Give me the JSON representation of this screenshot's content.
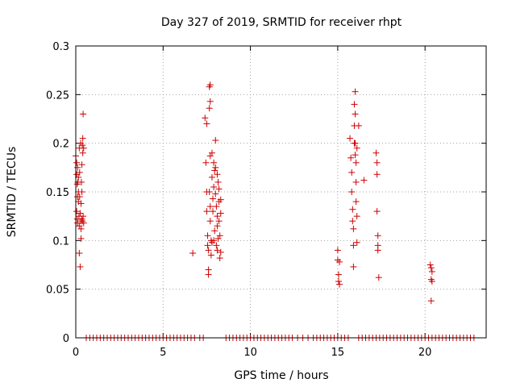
{
  "chart_data": {
    "type": "scatter",
    "title": "Day 327 of 2019, SRMTID for receiver rhpt",
    "xlabel": "GPS time / hours",
    "ylabel": "SRMTID / TECUs",
    "xlim": [
      0,
      23.5
    ],
    "ylim": [
      0,
      0.3
    ],
    "xticks": [
      0,
      5,
      10,
      15,
      20
    ],
    "yticks": [
      0,
      0.05,
      0.1,
      0.15,
      0.2,
      0.25,
      0.3
    ],
    "xtick_labels": [
      "0",
      "5",
      "10",
      "15",
      "20"
    ],
    "ytick_labels": [
      "0",
      "0.05",
      "0.1",
      "0.15",
      "0.2",
      "0.25",
      "0.3"
    ],
    "grid": true,
    "marker": "+",
    "marker_color": "#cc0000",
    "series": [
      {
        "points": [
          [
            0.0,
            0.187
          ],
          [
            0.05,
            0.18
          ],
          [
            0.05,
            0.168
          ],
          [
            0.08,
            0.158
          ],
          [
            0.1,
            0.145
          ],
          [
            0.05,
            0.13
          ],
          [
            0.08,
            0.122
          ],
          [
            0.1,
            0.118
          ],
          [
            0.12,
            0.16
          ],
          [
            0.15,
            0.15
          ],
          [
            0.15,
            0.14
          ],
          [
            0.18,
            0.125
          ],
          [
            0.2,
            0.115
          ],
          [
            0.2,
            0.195
          ],
          [
            0.22,
            0.17
          ],
          [
            0.2,
            0.087
          ],
          [
            0.25,
            0.073
          ],
          [
            0.25,
            0.128
          ],
          [
            0.28,
            0.12
          ],
          [
            0.3,
            0.112
          ],
          [
            0.3,
            0.138
          ],
          [
            0.32,
            0.16
          ],
          [
            0.35,
            0.178
          ],
          [
            0.35,
            0.15
          ],
          [
            0.38,
            0.198
          ],
          [
            0.4,
            0.19
          ],
          [
            0.4,
            0.205
          ],
          [
            0.42,
            0.23
          ],
          [
            0.45,
            0.195
          ],
          [
            0.42,
            0.125
          ],
          [
            0.45,
            0.118
          ],
          [
            0.38,
            0.12
          ],
          [
            0.1,
            0.175
          ],
          [
            0.15,
            0.165
          ],
          [
            0.3,
            0.102
          ],
          [
            0.22,
            0.145
          ],
          [
            0.35,
            0.122
          ],
          [
            0.28,
            0.2
          ],
          [
            6.7,
            0.087
          ],
          [
            7.4,
            0.226
          ],
          [
            7.45,
            0.18
          ],
          [
            7.5,
            0.22
          ],
          [
            7.5,
            0.13
          ],
          [
            7.55,
            0.105
          ],
          [
            7.55,
            0.095
          ],
          [
            7.6,
            0.07
          ],
          [
            7.6,
            0.065
          ],
          [
            7.65,
            0.258
          ],
          [
            7.65,
            0.236
          ],
          [
            7.7,
            0.26
          ],
          [
            7.7,
            0.243
          ],
          [
            7.7,
            0.187
          ],
          [
            7.65,
            0.15
          ],
          [
            7.7,
            0.12
          ],
          [
            7.75,
            0.1
          ],
          [
            7.75,
            0.085
          ],
          [
            7.8,
            0.19
          ],
          [
            7.8,
            0.165
          ],
          [
            7.85,
            0.143
          ],
          [
            7.85,
            0.13
          ],
          [
            7.9,
            0.18
          ],
          [
            7.9,
            0.155
          ],
          [
            7.95,
            0.172
          ],
          [
            7.95,
            0.11
          ],
          [
            8.0,
            0.203
          ],
          [
            8.0,
            0.148
          ],
          [
            8.05,
            0.135
          ],
          [
            8.05,
            0.095
          ],
          [
            8.1,
            0.168
          ],
          [
            8.1,
            0.125
          ],
          [
            8.1,
            0.115
          ],
          [
            8.15,
            0.16
          ],
          [
            8.15,
            0.102
          ],
          [
            8.2,
            0.153
          ],
          [
            8.2,
            0.12
          ],
          [
            8.25,
            0.105
          ],
          [
            8.25,
            0.082
          ],
          [
            8.3,
            0.142
          ],
          [
            8.3,
            0.128
          ],
          [
            8.3,
            0.088
          ],
          [
            7.5,
            0.15
          ],
          [
            7.6,
            0.09
          ],
          [
            7.8,
            0.098
          ],
          [
            8.0,
            0.175
          ],
          [
            8.2,
            0.14
          ],
          [
            7.9,
            0.1
          ],
          [
            7.7,
            0.135
          ],
          [
            8.1,
            0.09
          ],
          [
            15.0,
            0.09
          ],
          [
            15.0,
            0.08
          ],
          [
            15.05,
            0.065
          ],
          [
            15.05,
            0.058
          ],
          [
            15.1,
            0.055
          ],
          [
            15.1,
            0.078
          ],
          [
            15.7,
            0.205
          ],
          [
            15.75,
            0.185
          ],
          [
            15.8,
            0.17
          ],
          [
            15.8,
            0.15
          ],
          [
            15.85,
            0.132
          ],
          [
            15.85,
            0.12
          ],
          [
            15.9,
            0.112
          ],
          [
            15.9,
            0.095
          ],
          [
            15.9,
            0.073
          ],
          [
            15.95,
            0.24
          ],
          [
            15.95,
            0.218
          ],
          [
            16.0,
            0.253
          ],
          [
            16.0,
            0.23
          ],
          [
            16.0,
            0.2
          ],
          [
            16.05,
            0.18
          ],
          [
            16.05,
            0.16
          ],
          [
            16.05,
            0.14
          ],
          [
            16.1,
            0.195
          ],
          [
            16.1,
            0.125
          ],
          [
            16.1,
            0.098
          ],
          [
            16.2,
            0.218
          ],
          [
            16.5,
            0.162
          ],
          [
            15.95,
            0.2
          ],
          [
            16.0,
            0.188
          ],
          [
            17.2,
            0.19
          ],
          [
            17.25,
            0.18
          ],
          [
            17.25,
            0.168
          ],
          [
            17.25,
            0.13
          ],
          [
            17.3,
            0.105
          ],
          [
            17.3,
            0.095
          ],
          [
            17.3,
            0.09
          ],
          [
            17.35,
            0.062
          ],
          [
            20.3,
            0.075
          ],
          [
            20.35,
            0.072
          ],
          [
            20.35,
            0.06
          ],
          [
            20.4,
            0.068
          ],
          [
            20.4,
            0.058
          ],
          [
            20.35,
            0.038
          ]
        ]
      },
      {
        "points": [
          [
            0.6,
            0
          ],
          [
            0.8,
            0
          ],
          [
            1.0,
            0
          ],
          [
            1.2,
            0
          ],
          [
            1.4,
            0
          ],
          [
            1.6,
            0
          ],
          [
            1.8,
            0
          ],
          [
            2.0,
            0
          ],
          [
            2.2,
            0
          ],
          [
            2.4,
            0
          ],
          [
            2.6,
            0
          ],
          [
            2.8,
            0
          ],
          [
            3.0,
            0
          ],
          [
            3.2,
            0
          ],
          [
            3.4,
            0
          ],
          [
            3.6,
            0
          ],
          [
            3.8,
            0
          ],
          [
            4.0,
            0
          ],
          [
            4.2,
            0
          ],
          [
            4.4,
            0
          ],
          [
            4.6,
            0
          ],
          [
            4.8,
            0
          ],
          [
            5.0,
            0
          ],
          [
            5.2,
            0
          ],
          [
            5.4,
            0
          ],
          [
            5.6,
            0
          ],
          [
            5.8,
            0
          ],
          [
            6.0,
            0
          ],
          [
            6.2,
            0
          ],
          [
            6.4,
            0
          ],
          [
            6.6,
            0
          ],
          [
            6.8,
            0
          ],
          [
            7.1,
            0
          ],
          [
            7.3,
            0
          ],
          [
            8.6,
            0
          ],
          [
            8.8,
            0
          ],
          [
            9.0,
            0
          ],
          [
            9.2,
            0
          ],
          [
            9.4,
            0
          ],
          [
            9.6,
            0
          ],
          [
            9.8,
            0
          ],
          [
            10.0,
            0
          ],
          [
            10.2,
            0
          ],
          [
            10.4,
            0
          ],
          [
            10.6,
            0
          ],
          [
            10.8,
            0
          ],
          [
            11.0,
            0
          ],
          [
            11.2,
            0
          ],
          [
            11.4,
            0
          ],
          [
            11.6,
            0
          ],
          [
            11.8,
            0
          ],
          [
            12.0,
            0
          ],
          [
            12.2,
            0
          ],
          [
            12.4,
            0
          ],
          [
            12.7,
            0
          ],
          [
            13.0,
            0
          ],
          [
            13.3,
            0
          ],
          [
            13.6,
            0
          ],
          [
            13.8,
            0
          ],
          [
            14.0,
            0
          ],
          [
            14.2,
            0
          ],
          [
            14.4,
            0
          ],
          [
            14.6,
            0
          ],
          [
            14.8,
            0
          ],
          [
            15.0,
            0
          ],
          [
            15.2,
            0
          ],
          [
            15.4,
            0
          ],
          [
            15.6,
            0
          ],
          [
            16.2,
            0
          ],
          [
            16.4,
            0
          ],
          [
            16.6,
            0
          ],
          [
            16.8,
            0
          ],
          [
            17.0,
            0
          ],
          [
            17.2,
            0
          ],
          [
            17.4,
            0
          ],
          [
            17.6,
            0
          ],
          [
            17.8,
            0
          ],
          [
            18.0,
            0
          ],
          [
            18.2,
            0
          ],
          [
            18.4,
            0
          ],
          [
            18.6,
            0
          ],
          [
            18.8,
            0
          ],
          [
            19.0,
            0
          ],
          [
            19.2,
            0
          ],
          [
            19.4,
            0
          ],
          [
            19.6,
            0
          ],
          [
            19.8,
            0
          ],
          [
            20.0,
            0
          ],
          [
            20.2,
            0
          ],
          [
            20.4,
            0
          ],
          [
            20.6,
            0
          ],
          [
            20.8,
            0
          ],
          [
            21.0,
            0
          ],
          [
            21.2,
            0
          ],
          [
            21.4,
            0
          ],
          [
            21.6,
            0
          ],
          [
            21.8,
            0
          ],
          [
            22.0,
            0
          ],
          [
            22.2,
            0
          ],
          [
            22.4,
            0
          ],
          [
            22.6,
            0
          ],
          [
            22.8,
            0
          ]
        ]
      }
    ]
  }
}
